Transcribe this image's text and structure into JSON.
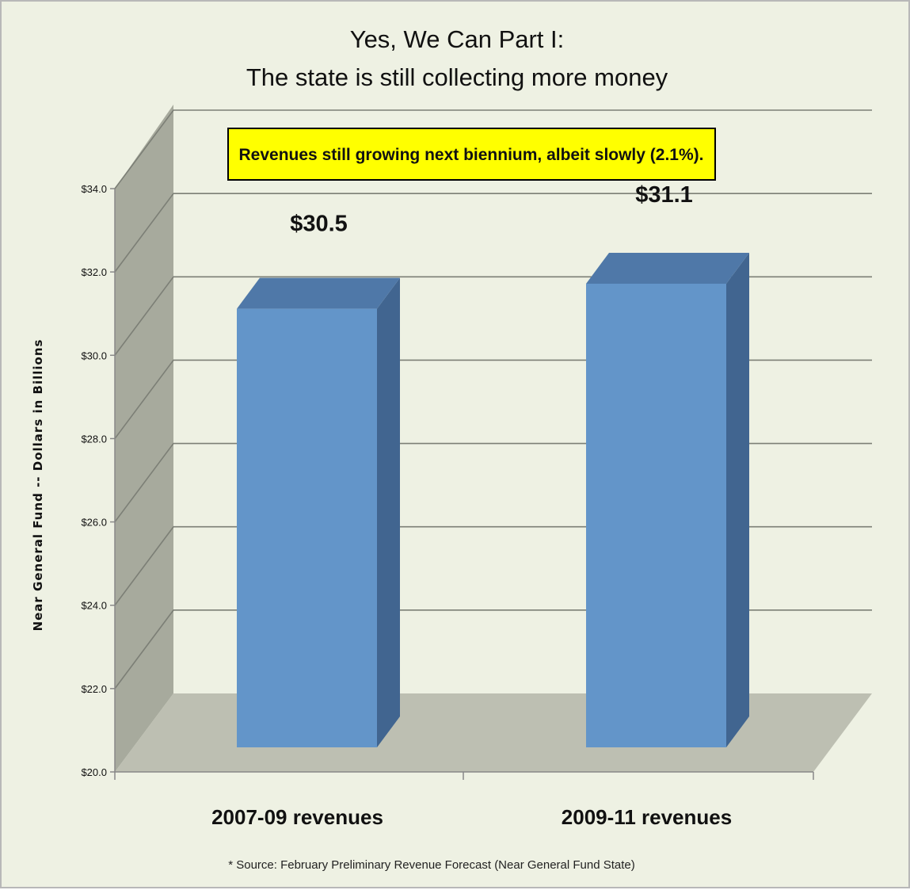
{
  "chart_data": {
    "type": "bar",
    "title_line1": "Yes, We Can Part I:",
    "title_line2": "The state is still collecting more money",
    "ylabel": "Near General Fund -- Dollars in Billions",
    "categories": [
      "2007-09 revenues",
      "2009-11 revenues"
    ],
    "values": [
      30.5,
      31.1
    ],
    "value_labels": [
      "$30.5",
      "$31.1"
    ],
    "ylim": [
      20,
      34
    ],
    "yticks": [
      20,
      22,
      24,
      26,
      28,
      30,
      32,
      34
    ],
    "ytick_labels": [
      "$20.0",
      "$22.0",
      "$24.0",
      "$26.0",
      "$28.0",
      "$30.0",
      "$32.0",
      "$34.0"
    ],
    "annotation": "Revenues still growing next biennium, albeit slowly (2.1%).",
    "source_note": "* Source: February Preliminary Revenue Forecast (Near General Fund State)",
    "grid": true,
    "legend": "none",
    "colors": {
      "bar_front": "#6395c9",
      "bar_top": "#4f78a8",
      "bar_side": "#416590",
      "wall": "#a7aa9d",
      "floor": "#bdbfb2",
      "annotation_bg": "#ffff00",
      "background": "#eef1e3"
    }
  }
}
